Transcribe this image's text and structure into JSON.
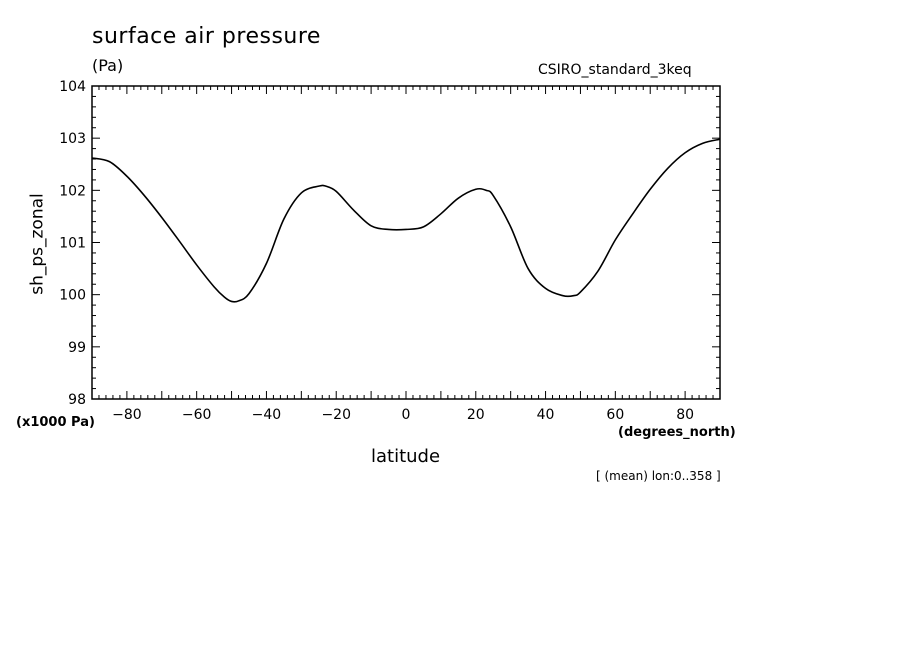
{
  "chart_data": {
    "type": "line",
    "title": "surface air pressure",
    "units_label": "(Pa)",
    "source_label": "CSIRO_standard_3keq",
    "xlabel": "latitude",
    "ylabel": "sh_ps_zonal",
    "x_units_label": "(degrees_north)",
    "y_units_label": "(x1000 Pa)",
    "footnote": "[ (mean) lon:0..358 ]",
    "xlim": [
      -90,
      90
    ],
    "ylim": [
      98,
      104
    ],
    "x_ticks": [
      -80,
      -60,
      -40,
      -20,
      0,
      20,
      40,
      60,
      80
    ],
    "x_tick_labels": [
      "-80",
      "-60",
      "-40",
      "-20",
      "0",
      "20",
      "40",
      "60",
      "80"
    ],
    "y_ticks": [
      98,
      99,
      100,
      101,
      102,
      103,
      104
    ],
    "y_tick_labels": [
      "98",
      "99",
      "100",
      "101",
      "102",
      "103",
      "104"
    ],
    "grid": false,
    "series": [
      {
        "name": "sh_ps_zonal",
        "color": "#000000",
        "x": [
          -90,
          -85,
          -80,
          -75,
          -70,
          -65,
          -60,
          -55,
          -52,
          -50,
          -48,
          -45,
          -40,
          -35,
          -30,
          -25,
          -23,
          -20,
          -15,
          -10,
          -5,
          0,
          5,
          10,
          15,
          20,
          23,
          25,
          30,
          35,
          40,
          45,
          48,
          50,
          55,
          60,
          65,
          70,
          75,
          80,
          85,
          90
        ],
        "values": [
          102.62,
          102.55,
          102.27,
          101.9,
          101.48,
          101.03,
          100.57,
          100.15,
          99.95,
          99.87,
          99.88,
          100.02,
          100.6,
          101.45,
          101.95,
          102.08,
          102.08,
          101.98,
          101.62,
          101.32,
          101.25,
          101.25,
          101.3,
          101.55,
          101.85,
          102.02,
          102.0,
          101.9,
          101.3,
          100.5,
          100.12,
          99.98,
          99.98,
          100.05,
          100.45,
          101.05,
          101.55,
          102.02,
          102.42,
          102.72,
          102.9,
          102.98
        ]
      }
    ]
  }
}
